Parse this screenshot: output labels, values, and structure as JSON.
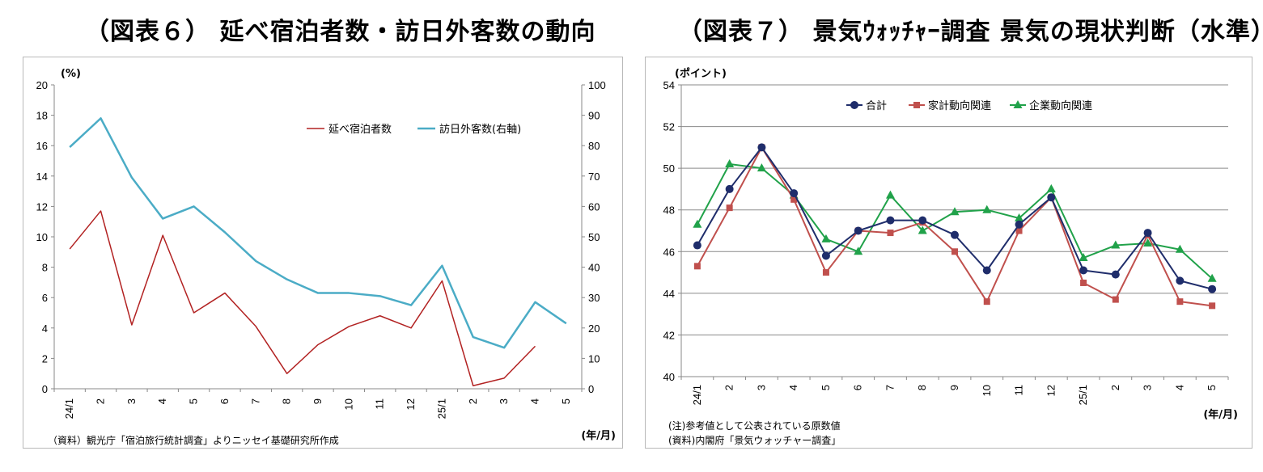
{
  "titles": {
    "fig6": "（図表６） 延べ宿泊者数・訪日外客数の動向",
    "fig7": "（図表７） 景気ｳｫｯﾁｬｰ調査 景気の現状判断（水準）"
  },
  "fig6_notes": {
    "source": "（資料）観光庁「宿泊旅行統計調査」よりニッセイ基礎研究所作成"
  },
  "fig7_notes": {
    "note": "(注)参考値として公表されている原数値",
    "source": "(資料)内閣府「景気ウォッチャー調査」"
  },
  "chart_data": [
    {
      "type": "line",
      "title": "（図表６） 延べ宿泊者数・訪日外客数の動向",
      "categories": [
        "24/1",
        "2",
        "3",
        "4",
        "5",
        "6",
        "7",
        "8",
        "9",
        "10",
        "11",
        "12",
        "25/1",
        "2",
        "3",
        "4",
        "5"
      ],
      "ylabel": "(%)",
      "xlabel": "(年/月)",
      "ylim": [
        0,
        20
      ],
      "y2lim": [
        0,
        100
      ],
      "yticks": [
        0,
        2,
        4,
        6,
        8,
        10,
        12,
        14,
        16,
        18,
        20
      ],
      "y2ticks": [
        0,
        10,
        20,
        30,
        40,
        50,
        60,
        70,
        80,
        90,
        100
      ],
      "legend_position": "top-right",
      "grid": false,
      "series": [
        {
          "name": "延べ宿泊者数",
          "axis": "left",
          "color": "#b22222",
          "values": [
            9.2,
            11.7,
            4.2,
            10.1,
            5.0,
            6.3,
            4.1,
            1.0,
            2.9,
            4.1,
            4.8,
            4.0,
            7.1,
            0.2,
            0.7,
            2.8,
            null
          ]
        },
        {
          "name": "訪日外客数(右軸)",
          "axis": "right",
          "color": "#4bacc6",
          "values": [
            79.5,
            89.0,
            69.5,
            56.0,
            60.0,
            51.5,
            42.0,
            36.0,
            31.5,
            31.5,
            30.5,
            27.5,
            40.5,
            17.0,
            13.5,
            28.5,
            21.5
          ]
        }
      ]
    },
    {
      "type": "line",
      "title": "（図表７） 景気ｳｫｯﾁｬｰ調査 景気の現状判断（水準）",
      "categories": [
        "24/1",
        "2",
        "3",
        "4",
        "5",
        "6",
        "7",
        "8",
        "9",
        "10",
        "11",
        "12",
        "25/1",
        "2",
        "3",
        "4",
        "5"
      ],
      "ylabel": "(ポイント)",
      "xlabel": "(年/月)",
      "ylim": [
        40,
        54
      ],
      "yticks": [
        40,
        42,
        44,
        46,
        48,
        50,
        52,
        54
      ],
      "legend_position": "top-center",
      "grid": true,
      "series": [
        {
          "name": "合計",
          "color": "#1f2d6b",
          "marker": "circle",
          "values": [
            46.3,
            49.0,
            51.0,
            48.8,
            45.8,
            47.0,
            47.5,
            47.5,
            46.8,
            45.1,
            47.3,
            48.6,
            45.1,
            44.9,
            46.9,
            44.6,
            44.2
          ]
        },
        {
          "name": "家計動向関連",
          "color": "#c0504d",
          "marker": "square",
          "values": [
            45.3,
            48.1,
            51.0,
            48.5,
            45.0,
            47.0,
            46.9,
            47.4,
            46.0,
            43.6,
            47.0,
            48.6,
            44.5,
            43.7,
            46.8,
            43.6,
            43.4
          ]
        },
        {
          "name": "企業動向関連",
          "color": "#21a24a",
          "marker": "triangle",
          "values": [
            47.3,
            50.2,
            50.0,
            48.7,
            46.6,
            46.0,
            48.7,
            47.0,
            47.9,
            48.0,
            47.6,
            49.0,
            45.7,
            46.3,
            46.4,
            46.1,
            44.7
          ]
        }
      ]
    }
  ]
}
